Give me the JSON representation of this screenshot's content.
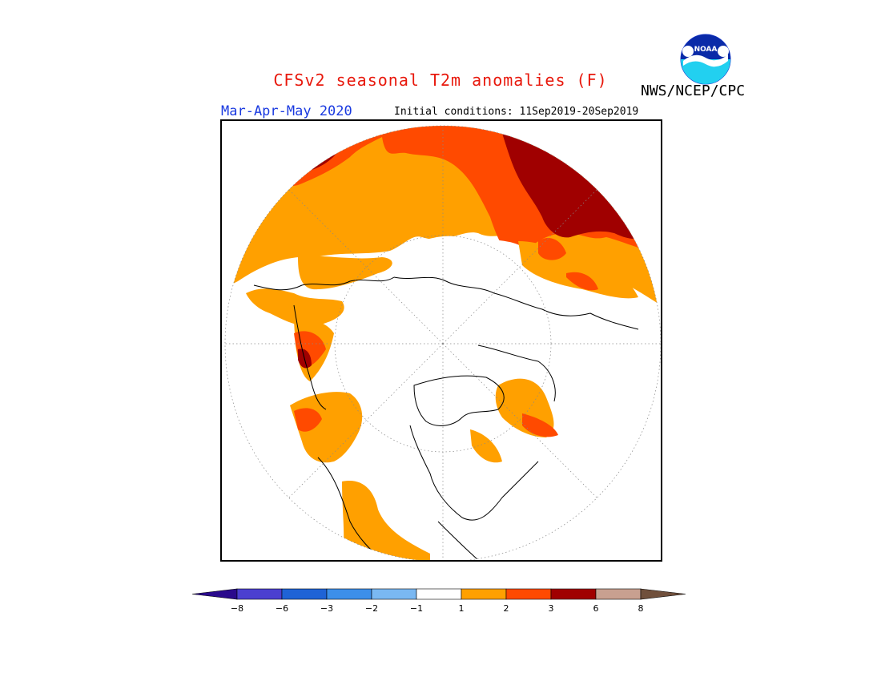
{
  "title": "CFSv2 seasonal T2m anomalies (F)",
  "organization": "NWS/NCEP/CPC",
  "season": "Mar-Apr-May 2020",
  "initial_conditions": "Initial conditions: 11Sep2019-20Sep2019",
  "logo": {
    "text": "NOAA",
    "icon": "noaa-logo-icon"
  },
  "projection": "north-polar-stereographic",
  "colors": {
    "title": "#e8180c",
    "season": "#1a3ae0"
  },
  "colorbar": {
    "bins": [
      {
        "color": "#2a0a8c"
      },
      {
        "color": "#4b3fd0"
      },
      {
        "color": "#1f63d6"
      },
      {
        "color": "#3c8fea"
      },
      {
        "color": "#7ab8f2"
      },
      {
        "color": "#ffffff"
      },
      {
        "color": "#ffa000"
      },
      {
        "color": "#ff4a00"
      },
      {
        "color": "#a00000"
      },
      {
        "color": "#c8a090"
      },
      {
        "color": "#70503c"
      }
    ],
    "tick_labels": [
      "-8",
      "-6",
      "-3",
      "-2",
      "-1",
      "1",
      "2",
      "3",
      "6",
      "8"
    ]
  }
}
